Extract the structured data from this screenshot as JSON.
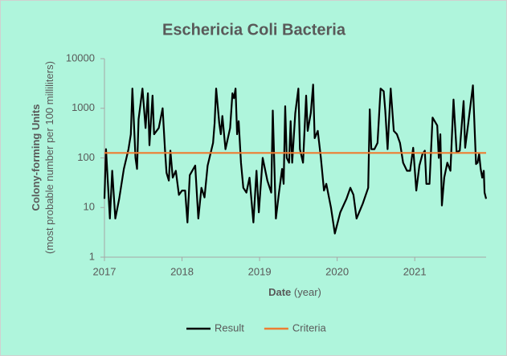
{
  "chart_data": {
    "type": "line",
    "title": "Eschericia Coli Bacteria",
    "ylabel": "Colony-forming Units",
    "ylabel_note": "(most probable number per 100 milliliters)",
    "xlabel": "Date",
    "xlabel_note": "(year)",
    "yscale": "log",
    "ylim": [
      1,
      10000
    ],
    "yticks": [
      1,
      10,
      100,
      1000,
      10000
    ],
    "xlim": [
      2017,
      2021.92
    ],
    "xticks": [
      2017,
      2018,
      2019,
      2020,
      2021
    ],
    "grid": false,
    "legend": "bottom",
    "series": [
      {
        "name": "Result",
        "color": "#000000",
        "x": [
          2017.0,
          2017.02,
          2017.07,
          2017.1,
          2017.14,
          2017.19,
          2017.25,
          2017.31,
          2017.34,
          2017.36,
          2017.4,
          2017.42,
          2017.44,
          2017.49,
          2017.53,
          2017.56,
          2017.58,
          2017.62,
          2017.64,
          2017.7,
          2017.75,
          2017.78,
          2017.8,
          2017.83,
          2017.85,
          2017.88,
          2017.92,
          2017.96,
          2018.0,
          2018.04,
          2018.07,
          2018.1,
          2018.17,
          2018.21,
          2018.25,
          2018.29,
          2018.33,
          2018.4,
          2018.42,
          2018.44,
          2018.48,
          2018.5,
          2018.52,
          2018.56,
          2018.62,
          2018.65,
          2018.67,
          2018.69,
          2018.71,
          2018.73,
          2018.76,
          2018.79,
          2018.83,
          2018.87,
          2018.92,
          2018.96,
          2018.99,
          2019.04,
          2019.1,
          2019.15,
          2019.17,
          2019.21,
          2019.25,
          2019.29,
          2019.31,
          2019.33,
          2019.35,
          2019.38,
          2019.4,
          2019.42,
          2019.46,
          2019.5,
          2019.52,
          2019.56,
          2019.6,
          2019.62,
          2019.66,
          2019.69,
          2019.71,
          2019.75,
          2019.79,
          2019.83,
          2019.86,
          2019.92,
          2019.97,
          2020.04,
          2020.12,
          2020.17,
          2020.21,
          2020.25,
          2020.33,
          2020.4,
          2020.42,
          2020.44,
          2020.48,
          2020.52,
          2020.56,
          2020.6,
          2020.62,
          2020.65,
          2020.69,
          2020.73,
          2020.77,
          2020.81,
          2020.85,
          2020.9,
          2020.94,
          2020.98,
          2021.02,
          2021.06,
          2021.1,
          2021.13,
          2021.15,
          2021.19,
          2021.23,
          2021.29,
          2021.31,
          2021.33,
          2021.35,
          2021.38,
          2021.42,
          2021.46,
          2021.5,
          2021.54,
          2021.58,
          2021.63,
          2021.65,
          2021.69,
          2021.75,
          2021.79,
          2021.81,
          2021.83,
          2021.85,
          2021.87,
          2021.89,
          2021.9,
          2021.92
        ],
        "values": [
          15,
          150,
          6,
          55,
          6,
          15,
          60,
          150,
          300,
          2500,
          100,
          60,
          600,
          2500,
          400,
          2000,
          180,
          1800,
          300,
          400,
          1000,
          150,
          50,
          35,
          140,
          40,
          55,
          18,
          22,
          22,
          5,
          45,
          70,
          6,
          25,
          16,
          70,
          200,
          500,
          2500,
          500,
          300,
          700,
          150,
          400,
          2000,
          1600,
          2500,
          300,
          550,
          80,
          25,
          20,
          40,
          5,
          55,
          8,
          100,
          35,
          20,
          900,
          6,
          20,
          60,
          30,
          1100,
          100,
          80,
          550,
          80,
          800,
          2500,
          150,
          80,
          1800,
          350,
          800,
          3000,
          250,
          350,
          100,
          22,
          30,
          10,
          3,
          8,
          15,
          25,
          18,
          6,
          12,
          25,
          950,
          150,
          150,
          200,
          2500,
          2200,
          900,
          150,
          2500,
          350,
          300,
          200,
          80,
          55,
          55,
          160,
          22,
          70,
          120,
          140,
          30,
          30,
          650,
          450,
          100,
          300,
          11,
          40,
          80,
          55,
          1500,
          130,
          140,
          1400,
          160,
          500,
          2900,
          75,
          80,
          120,
          60,
          40,
          55,
          20,
          15
        ]
      },
      {
        "name": "Criteria",
        "color": "#ed7d31",
        "x": [
          2017,
          2021.92
        ],
        "values": [
          126,
          126
        ]
      }
    ]
  }
}
